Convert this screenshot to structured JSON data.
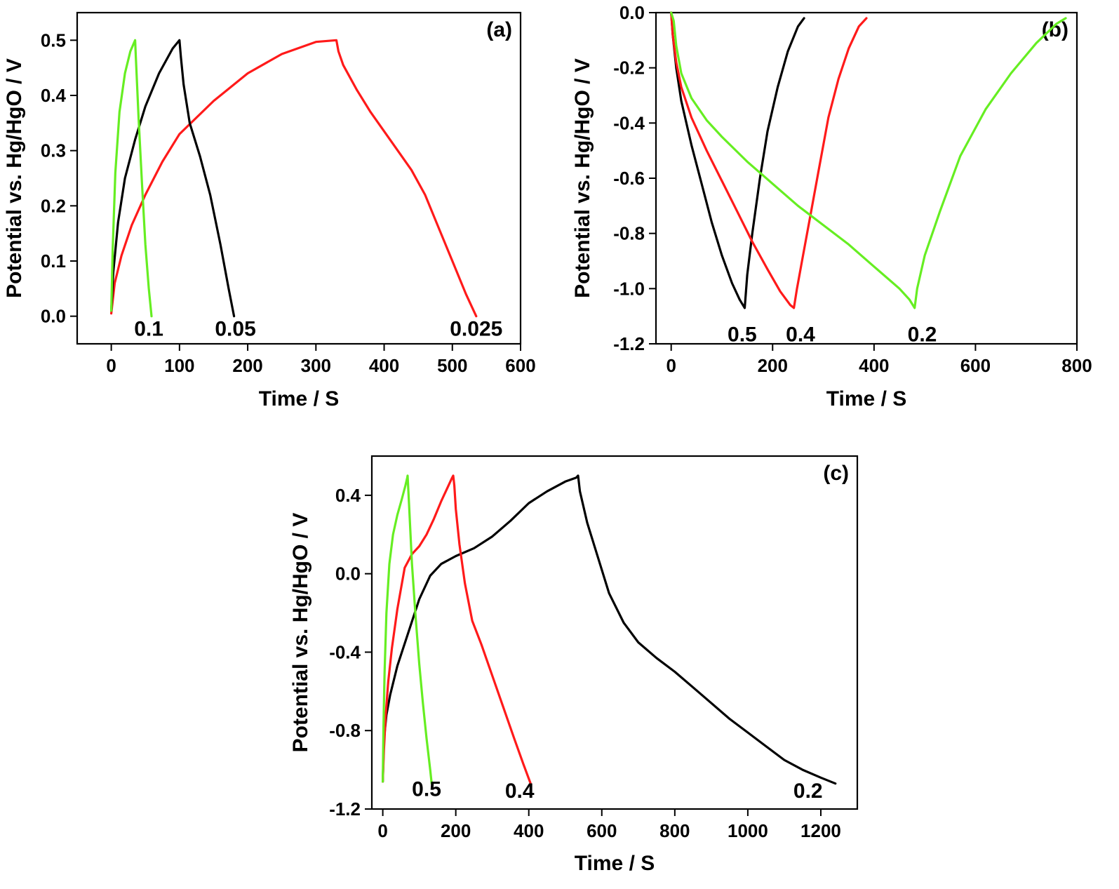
{
  "chart_data": [
    {
      "type": "line",
      "panel_label": "(a)",
      "xlabel": "Time / S",
      "ylabel": "Potential vs. Hg/HgO / V",
      "xlim": [
        -50,
        600
      ],
      "ylim": [
        -0.05,
        0.55
      ],
      "xticks": [
        0,
        100,
        200,
        300,
        400,
        500,
        600
      ],
      "yticks": [
        0.0,
        0.1,
        0.2,
        0.3,
        0.4,
        0.5
      ],
      "xtick_labels": [
        "0",
        "100",
        "200",
        "300",
        "400",
        "500",
        "600"
      ],
      "ytick_labels": [
        "0.0",
        "0.1",
        "0.2",
        "0.3",
        "0.4",
        "0.5"
      ],
      "series": [
        {
          "color": "#ff1a1a",
          "curve_label": "0.025",
          "label_at": [
            535,
            -0.02
          ],
          "x": [
            0,
            5,
            15,
            30,
            50,
            75,
            100,
            150,
            200,
            250,
            300,
            330,
            333,
            340,
            360,
            380,
            400,
            420,
            440,
            460,
            480,
            500,
            520,
            535
          ],
          "y": [
            0.005,
            0.06,
            0.11,
            0.165,
            0.22,
            0.28,
            0.33,
            0.39,
            0.44,
            0.475,
            0.497,
            0.5,
            0.48,
            0.455,
            0.41,
            0.37,
            0.335,
            0.3,
            0.265,
            0.22,
            0.16,
            0.1,
            0.04,
            0.0
          ]
        },
        {
          "color": "#000000",
          "curve_label": "0.05",
          "label_at": [
            182,
            -0.02
          ],
          "x": [
            0,
            3,
            10,
            20,
            35,
            50,
            70,
            90,
            100,
            102,
            106,
            115,
            130,
            145,
            160,
            172,
            180
          ],
          "y": [
            0.01,
            0.08,
            0.17,
            0.25,
            0.32,
            0.38,
            0.44,
            0.485,
            0.5,
            0.47,
            0.42,
            0.35,
            0.29,
            0.22,
            0.13,
            0.05,
            0.0
          ],
          "label_x": 0
        },
        {
          "color": "#66ee22",
          "curve_label": "0.1",
          "label_at": [
            55,
            -0.02
          ],
          "x": [
            0,
            2,
            6,
            12,
            20,
            28,
            35,
            36,
            40,
            45,
            50,
            55,
            59
          ],
          "y": [
            0.01,
            0.12,
            0.26,
            0.37,
            0.44,
            0.48,
            0.5,
            0.47,
            0.36,
            0.24,
            0.13,
            0.05,
            0.0
          ]
        }
      ]
    },
    {
      "type": "line",
      "panel_label": "(b)",
      "xlabel": "Time / S",
      "ylabel": "Potential vs. Hg/HgO / V",
      "xlim": [
        -30,
        800
      ],
      "ylim": [
        -1.2,
        0.0
      ],
      "xticks": [
        0,
        200,
        400,
        600,
        800
      ],
      "yticks": [
        0.0,
        -0.2,
        -0.4,
        -0.6,
        -0.8,
        -1.0,
        -1.2
      ],
      "xtick_labels": [
        "0",
        "200",
        "400",
        "600",
        "800"
      ],
      "ytick_labels": [
        "0.0",
        "-0.2",
        "-0.4",
        "-0.6",
        "-0.8",
        "-1.0",
        "-1.2"
      ],
      "series": [
        {
          "color": "#000000",
          "curve_label": "0.5",
          "label_at": [
            140,
            -1.16
          ],
          "x": [
            0,
            3,
            10,
            20,
            40,
            60,
            80,
            100,
            120,
            135,
            145,
            150,
            160,
            175,
            190,
            210,
            230,
            250,
            262
          ],
          "y": [
            0.0,
            -0.08,
            -0.2,
            -0.32,
            -0.48,
            -0.62,
            -0.76,
            -0.88,
            -0.98,
            -1.04,
            -1.07,
            -0.95,
            -0.8,
            -0.6,
            -0.43,
            -0.27,
            -0.14,
            -0.05,
            -0.02
          ]
        },
        {
          "color": "#ff1a1a",
          "curve_label": "0.4",
          "label_at": [
            255,
            -1.16
          ],
          "x": [
            0,
            3,
            10,
            20,
            40,
            70,
            100,
            130,
            160,
            190,
            215,
            235,
            242,
            248,
            260,
            275,
            290,
            310,
            330,
            350,
            370,
            385
          ],
          "y": [
            0.0,
            -0.08,
            -0.18,
            -0.27,
            -0.38,
            -0.5,
            -0.61,
            -0.72,
            -0.83,
            -0.93,
            -1.01,
            -1.06,
            -1.07,
            -1.0,
            -0.88,
            -0.73,
            -0.58,
            -0.38,
            -0.24,
            -0.13,
            -0.05,
            -0.02
          ]
        },
        {
          "color": "#66ee22",
          "curve_label": "0.2",
          "label_at": [
            495,
            -1.16
          ],
          "x": [
            0,
            5,
            10,
            20,
            40,
            70,
            100,
            150,
            200,
            250,
            300,
            350,
            400,
            450,
            470,
            480,
            485,
            500,
            530,
            570,
            620,
            670,
            720,
            760,
            778
          ],
          "y": [
            0.0,
            -0.03,
            -0.12,
            -0.22,
            -0.31,
            -0.39,
            -0.45,
            -0.54,
            -0.62,
            -0.7,
            -0.77,
            -0.84,
            -0.92,
            -1.0,
            -1.04,
            -1.07,
            -1.0,
            -0.88,
            -0.72,
            -0.52,
            -0.35,
            -0.22,
            -0.11,
            -0.04,
            -0.02
          ]
        }
      ]
    },
    {
      "type": "line",
      "panel_label": "(c)",
      "xlabel": "Time / S",
      "ylabel": "Potential vs. Hg/HgO / V",
      "xlim": [
        -30,
        1300
      ],
      "ylim": [
        -1.2,
        0.6
      ],
      "xticks": [
        0,
        200,
        400,
        600,
        800,
        1000,
        1200
      ],
      "yticks": [
        0.4,
        0.0,
        -0.4,
        -0.8,
        -1.2
      ],
      "xtick_labels": [
        "0",
        "200",
        "400",
        "600",
        "800",
        "1000",
        "1200"
      ],
      "ytick_labels": [
        "0.4",
        "0.0",
        "-0.4",
        "-0.8",
        "-1.2"
      ],
      "series": [
        {
          "color": "#000000",
          "curve_label": "0.2",
          "label_at": [
            1165,
            -1.1
          ],
          "x": [
            0,
            3,
            10,
            20,
            40,
            70,
            100,
            130,
            160,
            200,
            250,
            300,
            350,
            400,
            450,
            500,
            530,
            535,
            540,
            560,
            590,
            620,
            660,
            700,
            750,
            800,
            850,
            900,
            950,
            1000,
            1050,
            1100,
            1150,
            1200,
            1240
          ],
          "y": [
            -1.06,
            -0.85,
            -0.72,
            -0.62,
            -0.47,
            -0.3,
            -0.13,
            -0.01,
            0.05,
            0.09,
            0.13,
            0.19,
            0.27,
            0.36,
            0.42,
            0.47,
            0.49,
            0.5,
            0.42,
            0.26,
            0.08,
            -0.1,
            -0.25,
            -0.35,
            -0.43,
            -0.5,
            -0.58,
            -0.66,
            -0.74,
            -0.81,
            -0.88,
            -0.95,
            -1.0,
            -1.04,
            -1.07
          ]
        },
        {
          "color": "#ff1a1a",
          "curve_label": "0.4",
          "label_at": [
            375,
            -1.1
          ],
          "x": [
            0,
            3,
            8,
            15,
            25,
            40,
            60,
            80,
            100,
            120,
            140,
            160,
            180,
            190,
            193,
            196,
            200,
            210,
            225,
            245,
            270,
            300,
            330,
            360,
            385,
            405
          ],
          "y": [
            -1.06,
            -0.9,
            -0.72,
            -0.55,
            -0.38,
            -0.18,
            0.03,
            0.1,
            0.14,
            0.2,
            0.28,
            0.37,
            0.45,
            0.49,
            0.5,
            0.45,
            0.33,
            0.15,
            -0.05,
            -0.24,
            -0.36,
            -0.52,
            -0.68,
            -0.84,
            -0.97,
            -1.07
          ]
        },
        {
          "color": "#66ee22",
          "curve_label": "0.5",
          "label_at": [
            120,
            -1.09
          ],
          "x": [
            0,
            2,
            5,
            10,
            18,
            28,
            40,
            52,
            62,
            67,
            68,
            72,
            80,
            90,
            100,
            110,
            120,
            130,
            134
          ],
          "y": [
            -1.06,
            -0.78,
            -0.5,
            -0.2,
            0.05,
            0.2,
            0.3,
            0.38,
            0.45,
            0.49,
            0.5,
            0.35,
            0.05,
            -0.22,
            -0.46,
            -0.66,
            -0.84,
            -1.0,
            -1.07
          ]
        }
      ]
    }
  ]
}
